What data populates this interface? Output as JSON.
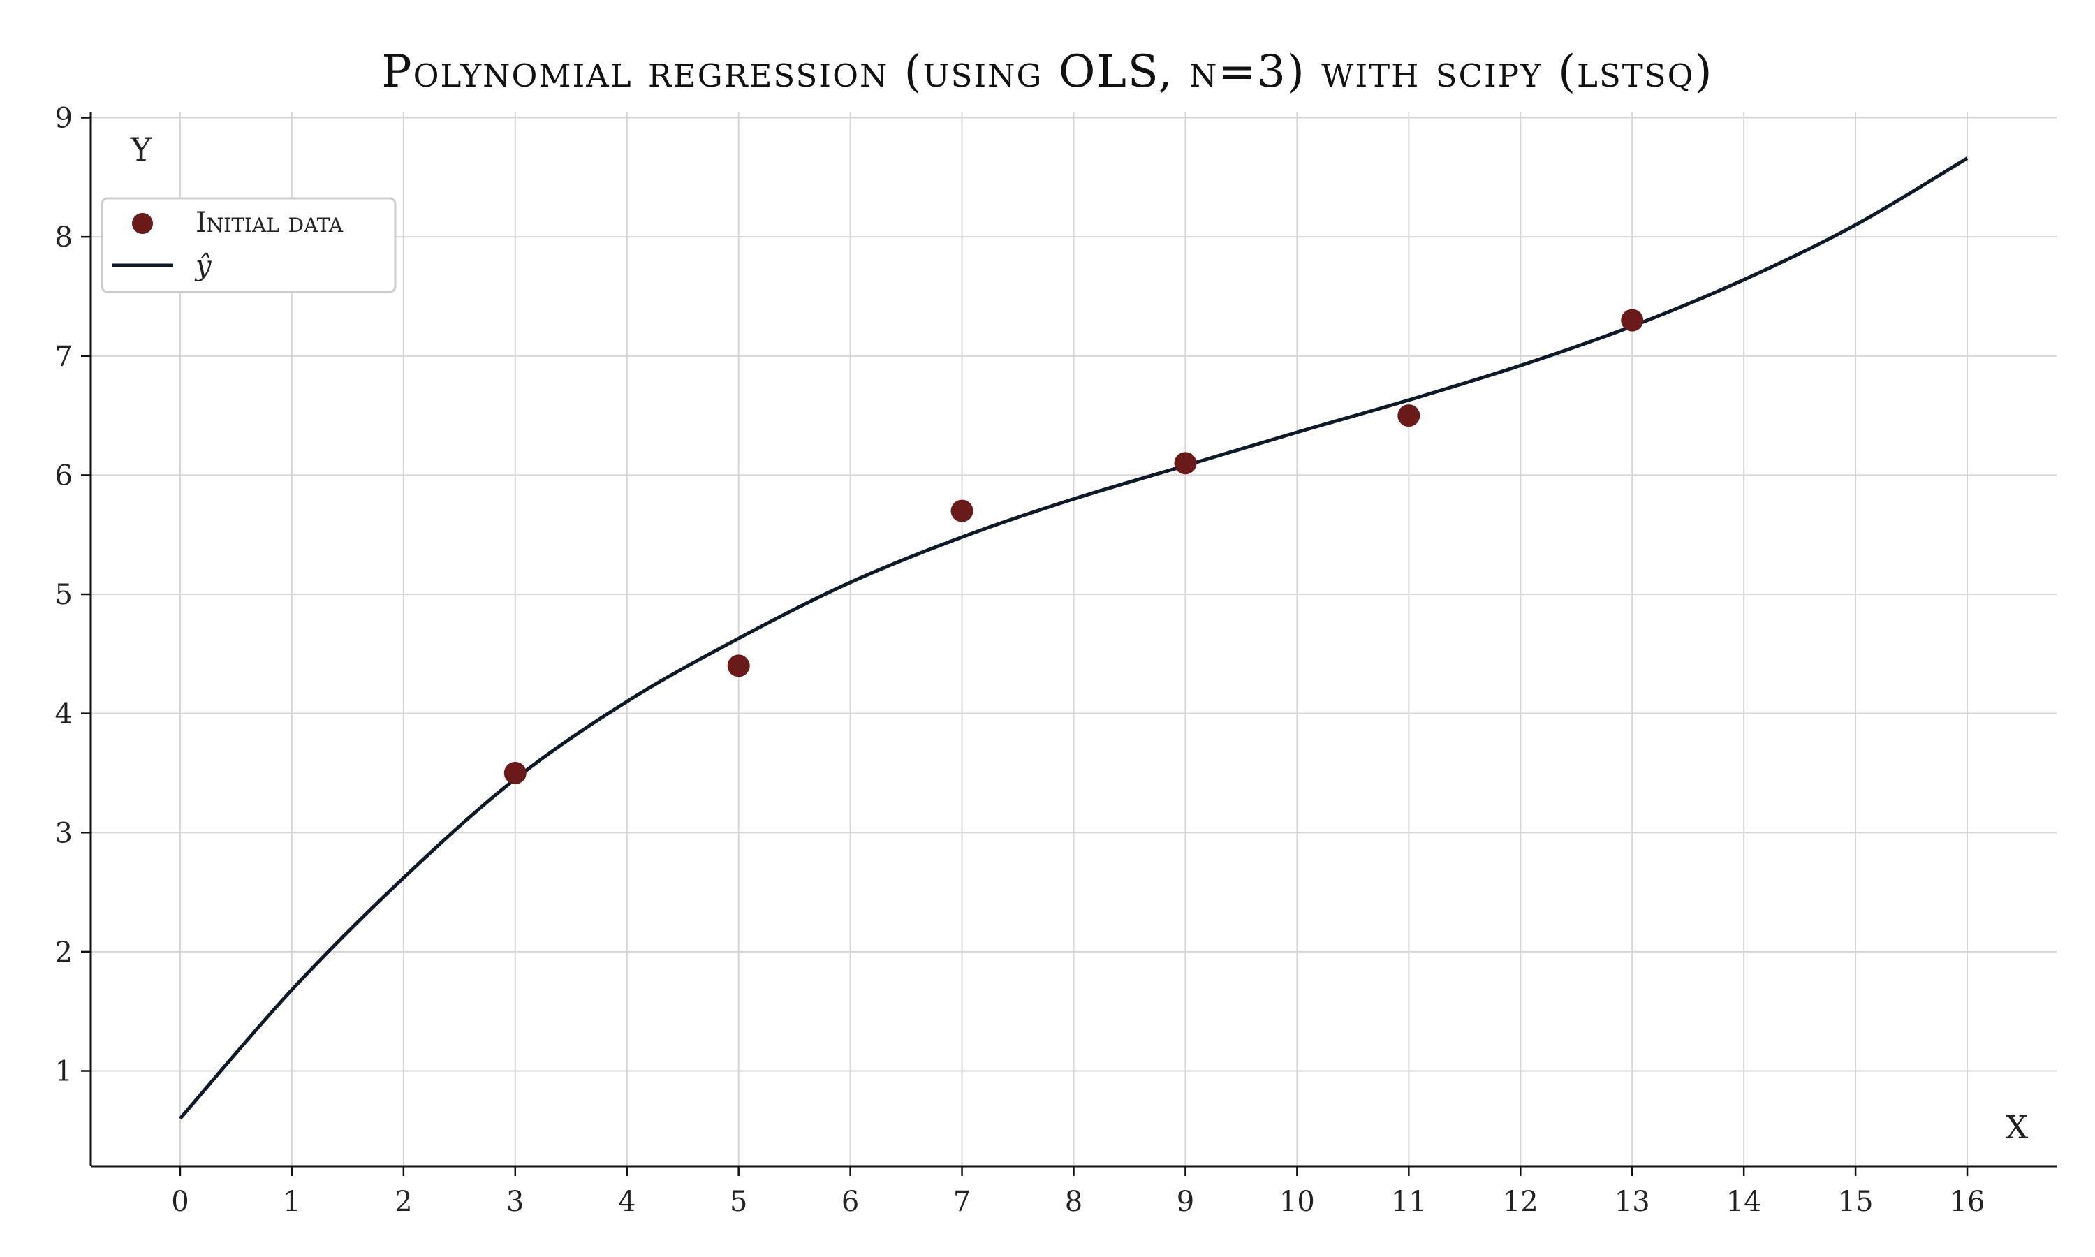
{
  "chart_data": {
    "type": "scatter",
    "title": "Polynomial regression (using OLS, n=3) with scipy (lstsq)",
    "xlabel": "X",
    "ylabel": "Y",
    "xlim": [
      -0.8,
      16.8
    ],
    "ylim": [
      0.2,
      9.05
    ],
    "x_ticks": [
      0,
      1,
      2,
      3,
      4,
      5,
      6,
      7,
      8,
      9,
      10,
      11,
      12,
      13,
      14,
      15,
      16
    ],
    "y_ticks": [
      1,
      2,
      3,
      4,
      5,
      6,
      7,
      8,
      9
    ],
    "grid": true,
    "legend_position": "upper-left",
    "colors": {
      "points": "#6b1a1a",
      "line": "#0d1a2a"
    },
    "series": [
      {
        "name": "Initial data",
        "type": "scatter",
        "x": [
          3,
          5,
          7,
          9,
          11,
          13
        ],
        "y": [
          3.5,
          4.4,
          5.7,
          6.1,
          6.5,
          7.3
        ]
      },
      {
        "name": "ŷ",
        "type": "line",
        "x": [
          0,
          1,
          2,
          3,
          4,
          5,
          6,
          7,
          8,
          9,
          10,
          11,
          12,
          13,
          14,
          15,
          16
        ],
        "y": [
          0.6,
          1.68,
          2.62,
          3.45,
          4.1,
          4.63,
          5.1,
          5.48,
          5.8,
          6.08,
          6.36,
          6.63,
          6.92,
          7.25,
          7.64,
          8.1,
          8.66
        ]
      }
    ]
  }
}
